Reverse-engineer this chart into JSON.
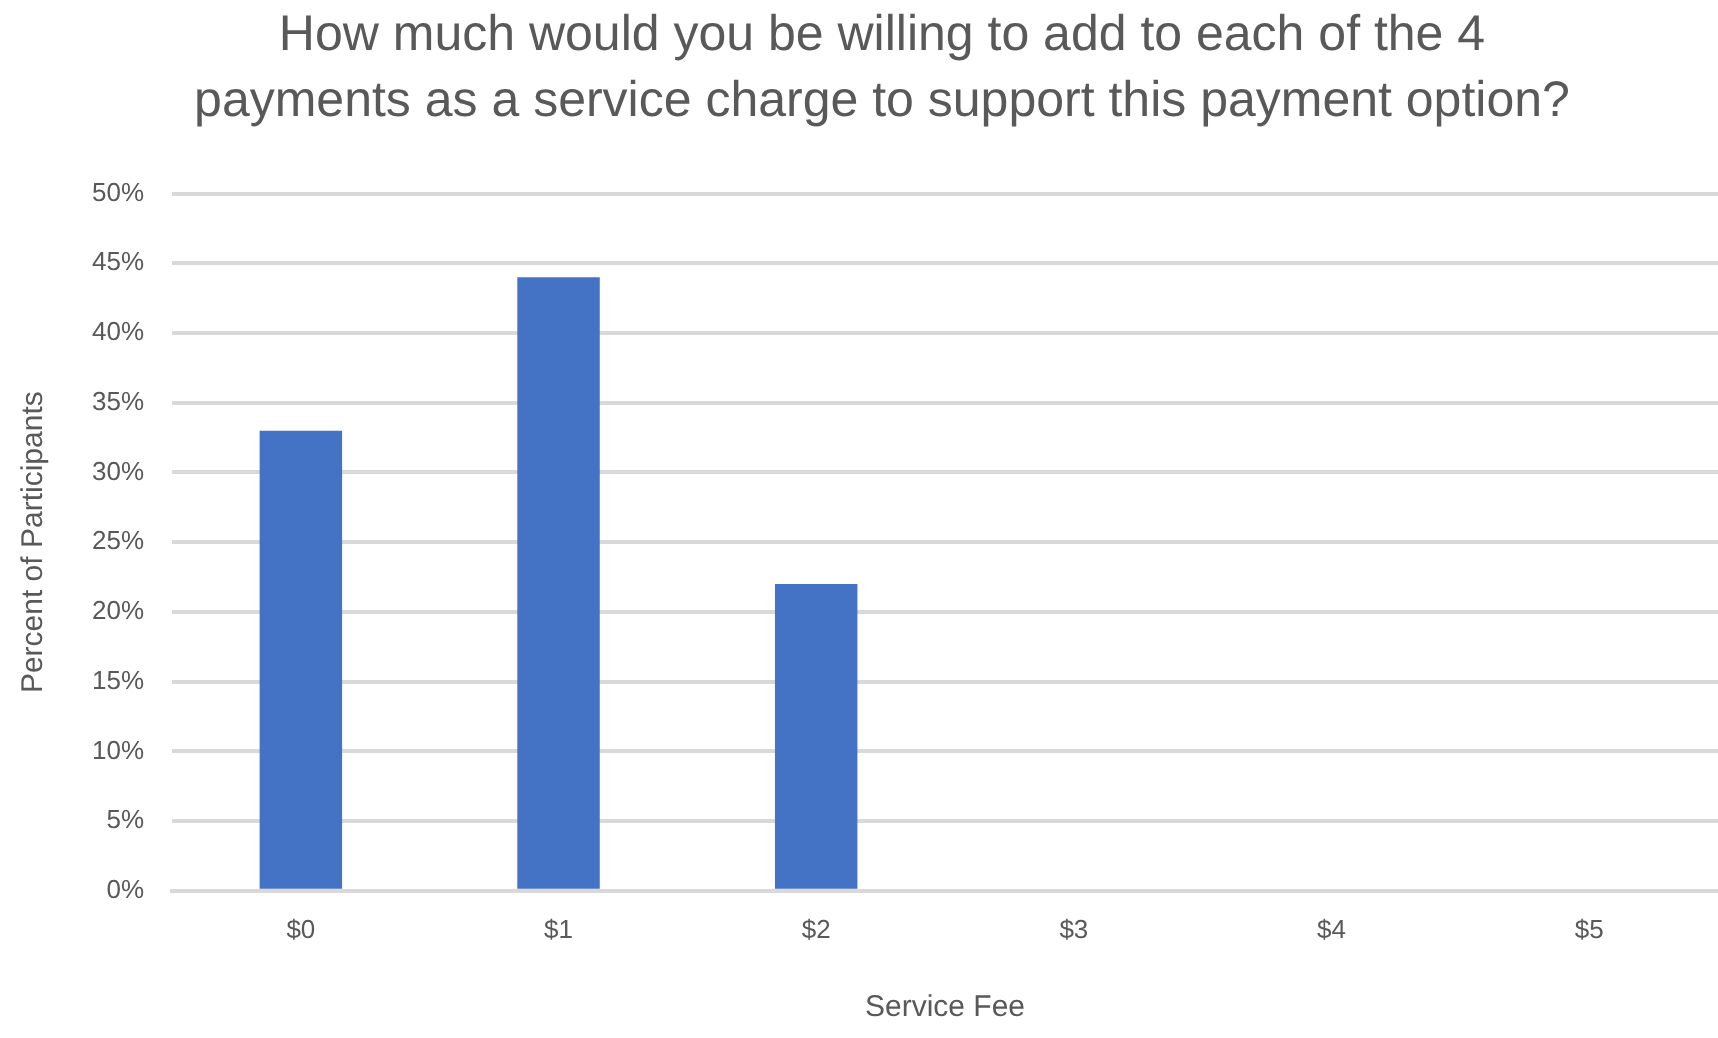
{
  "chart_data": {
    "type": "bar",
    "title": "How much would you be willing to add to each of the 4 payments as a service charge to support this payment option?",
    "xlabel": "Service Fee",
    "ylabel": "Percent of Participants",
    "categories": [
      "$0",
      "$1",
      "$2",
      "$3",
      "$4",
      "$5"
    ],
    "values": [
      33,
      44,
      22,
      0,
      0,
      0
    ],
    "color": "#4472c4",
    "ylim": [
      0,
      50
    ],
    "yticks": [
      {
        "value": 0,
        "label": "0%"
      },
      {
        "value": 5,
        "label": "5%"
      },
      {
        "value": 10,
        "label": "10%"
      },
      {
        "value": 15,
        "label": "15%"
      },
      {
        "value": 20,
        "label": "20%"
      },
      {
        "value": 25,
        "label": "25%"
      },
      {
        "value": 30,
        "label": "30%"
      },
      {
        "value": 35,
        "label": "35%"
      },
      {
        "value": 40,
        "label": "40%"
      },
      {
        "value": 45,
        "label": "45%"
      },
      {
        "value": 50,
        "label": "50%"
      }
    ],
    "grid": "y"
  }
}
